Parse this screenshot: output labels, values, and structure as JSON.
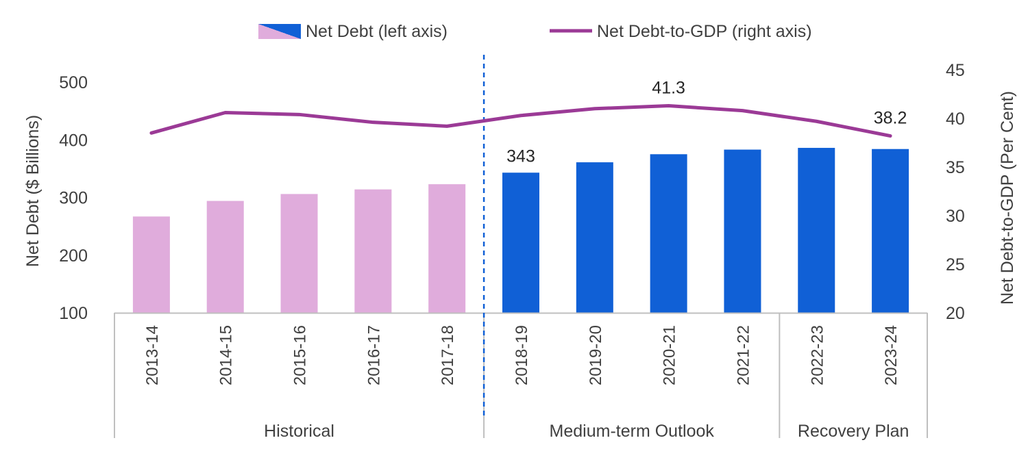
{
  "chart_data": {
    "type": "bar",
    "categories": [
      "2013-14",
      "2014-15",
      "2015-16",
      "2016-17",
      "2017-18",
      "2018-19",
      "2019-20",
      "2020-21",
      "2021-22",
      "2022-23",
      "2023-24"
    ],
    "series": [
      {
        "name": "Net Debt (left axis)",
        "type": "bar",
        "axis": "left",
        "values": [
          267,
          294,
          306,
          314,
          323,
          343,
          361,
          375,
          383,
          386,
          384
        ],
        "colors": [
          "#e0acdc",
          "#e0acdc",
          "#e0acdc",
          "#e0acdc",
          "#e0acdc",
          "#1060d6",
          "#1060d6",
          "#1060d6",
          "#1060d6",
          "#1060d6",
          "#1060d6"
        ]
      },
      {
        "name": "Net Debt-to-GDP (right axis)",
        "type": "line",
        "axis": "right",
        "color": "#9b3a96",
        "values": [
          38.5,
          40.6,
          40.4,
          39.6,
          39.2,
          40.3,
          41.0,
          41.3,
          40.8,
          39.7,
          38.2
        ]
      }
    ],
    "data_labels": [
      {
        "series": 0,
        "index": 5,
        "text": "343"
      },
      {
        "series": 1,
        "index": 7,
        "text": "41.3"
      },
      {
        "series": 1,
        "index": 10,
        "text": "38.2"
      }
    ],
    "groups": [
      {
        "label": "Historical",
        "start": 0,
        "end": 4
      },
      {
        "label": "Medium-term Outlook",
        "start": 5,
        "end": 8
      },
      {
        "label": "Recovery Plan",
        "start": 9,
        "end": 10
      }
    ],
    "ylabel_left": "Net Debt ($ Billions)",
    "ylabel_right": "Net Debt-to-GDP (Per Cent)",
    "ylim_left": [
      100,
      500
    ],
    "yticks_left": [
      "100",
      "200",
      "300",
      "400",
      "500"
    ],
    "ylim_right": [
      20,
      45
    ],
    "yticks_right": [
      "20",
      "25",
      "30",
      "35",
      "40",
      "45"
    ],
    "divider_after_index": 4,
    "legend_position": "top-center",
    "grid": false
  }
}
